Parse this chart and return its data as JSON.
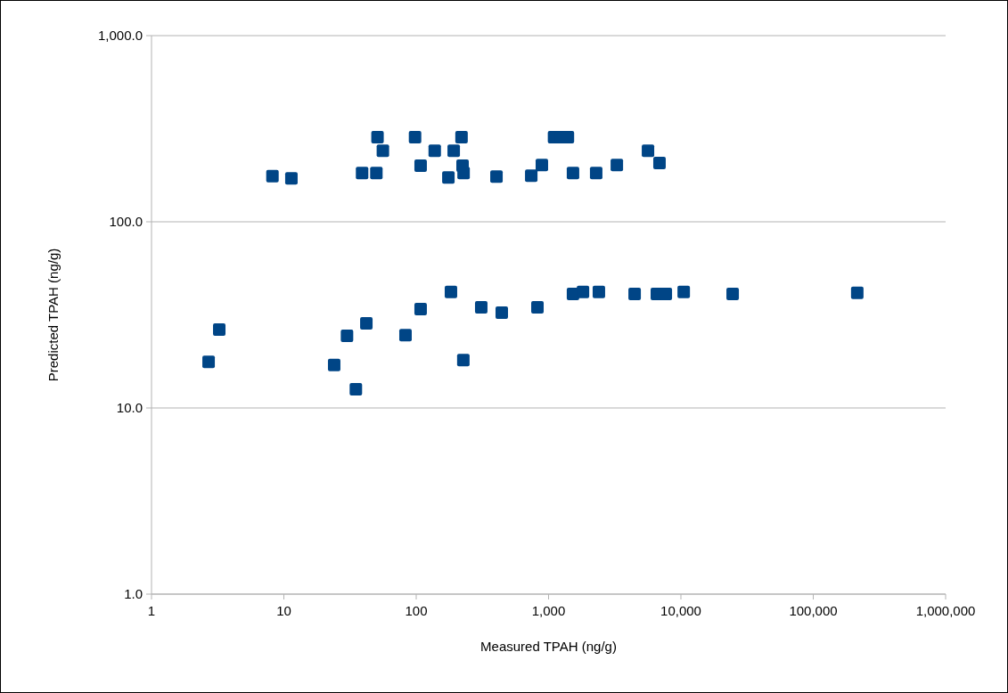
{
  "chart_data": {
    "type": "scatter",
    "xlabel": "Measured TPAH (ng/g)",
    "ylabel": "Predicted TPAH (ng/g)",
    "log": "xy",
    "grid": "y",
    "marker": "square",
    "xlim": [
      1,
      1000000
    ],
    "ylim": [
      1,
      1000
    ],
    "xticks": [
      1,
      10,
      100,
      {
        "value": 1000,
        "label": "1,000"
      },
      {
        "value": 10000,
        "label": "10,000"
      },
      {
        "value": 100000,
        "label": "100,000"
      },
      {
        "value": 1000000,
        "label": "1,000,000"
      }
    ],
    "yticks": [
      {
        "value": 1,
        "label": "1.0"
      },
      {
        "value": 10,
        "label": "10.0"
      },
      {
        "value": 100,
        "label": "100.0"
      },
      {
        "value": 1000,
        "label": "1,000.0"
      }
    ],
    "series": [
      {
        "color": "#004586",
        "x": [
          8.2,
          11.4,
          39,
          50,
          51,
          56,
          98,
          108,
          138,
          220,
          192,
          224,
          175,
          228,
          404,
          740,
          890,
          1100,
          1250,
          1400,
          1530,
          2290,
          3280,
          5640,
          6890,
          2.7,
          3.25,
          24,
          35,
          30,
          42,
          83,
          108,
          183,
          227,
          310,
          443,
          824,
          1530,
          1820,
          2400,
          4470,
          6580,
          7690,
          10500,
          24600,
          215000
        ],
        "values": [
          176,
          171,
          183,
          183,
          285,
          241,
          285,
          200,
          241,
          285,
          241,
          200,
          173,
          183,
          175,
          177,
          202,
          285,
          285,
          285,
          183,
          183,
          202,
          241,
          207,
          17.7,
          26.4,
          17,
          12.6,
          24.4,
          28.5,
          24.6,
          34,
          42,
          18.1,
          34.7,
          32.5,
          34.7,
          41,
          42,
          42,
          41,
          41,
          41,
          42,
          41,
          41.5
        ]
      }
    ]
  }
}
